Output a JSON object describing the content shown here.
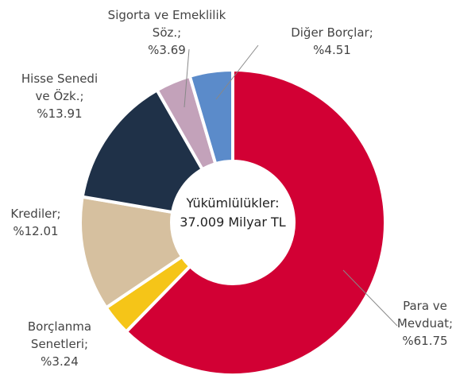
{
  "chart_data": {
    "type": "donut",
    "center_label": [
      "Yükümlülükler:",
      "37.009 Milyar TL"
    ],
    "categories": [
      "Para ve Mevduat;",
      "Borçlanma Senetleri;",
      "Krediler;",
      "Hisse Senedi ve Özk.;",
      "Sigorta ve Emeklilik Söz.;",
      "Diğer Borçlar;"
    ],
    "values": [
      61.75,
      3.24,
      12.01,
      13.91,
      3.69,
      4.51
    ],
    "value_labels": [
      "%61.75",
      "%3.24",
      "%12.01",
      "%13.91",
      "%3.69",
      "%4.51"
    ],
    "colors": [
      "#d20034",
      "#f5c518",
      "#d6c09f",
      "#1f3148",
      "#c3a2ba",
      "#5b8bca"
    ]
  }
}
